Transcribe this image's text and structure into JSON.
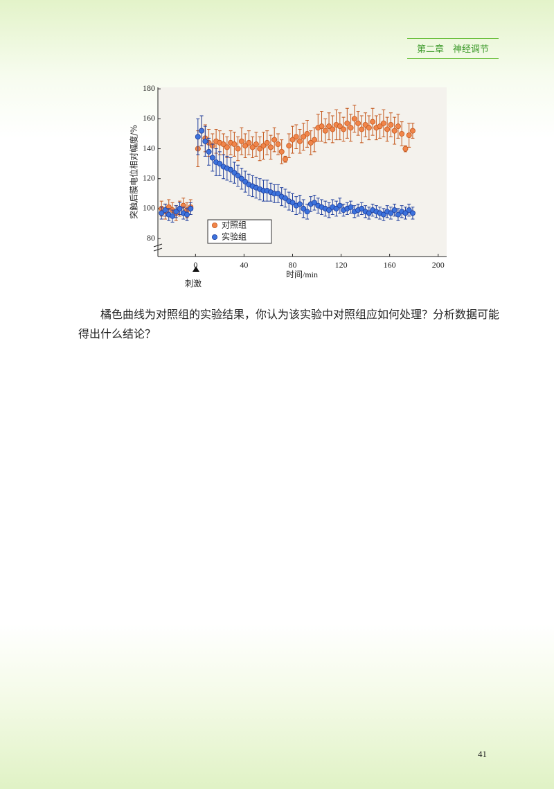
{
  "header": {
    "title": "第二章　神经调节"
  },
  "chart_data": {
    "type": "scatter",
    "y_label": "突触后膜电位相对幅度/%",
    "x_label": "时间/min",
    "annotation": "刺激",
    "x": [
      -28,
      -25,
      -22,
      -19,
      -16,
      -13,
      -10,
      -7,
      -4,
      2,
      5,
      8,
      11,
      14,
      17,
      20,
      23,
      26,
      29,
      32,
      35,
      38,
      41,
      44,
      47,
      50,
      53,
      56,
      59,
      62,
      65,
      68,
      71,
      74,
      77,
      80,
      83,
      86,
      89,
      92,
      95,
      98,
      101,
      104,
      107,
      110,
      113,
      116,
      119,
      122,
      125,
      128,
      131,
      134,
      137,
      140,
      143,
      146,
      149,
      152,
      155,
      158,
      161,
      164,
      167,
      170,
      173,
      176,
      179
    ],
    "series": [
      {
        "name": "对照组",
        "color": "#f0854a",
        "stroke": "#c4571c",
        "values": [
          100,
          98,
          101,
          99,
          97,
          100,
          102,
          99,
          101,
          140,
          152,
          147,
          144,
          142,
          145,
          144,
          143,
          141,
          144,
          143,
          140,
          145,
          142,
          144,
          141,
          143,
          140,
          142,
          144,
          141,
          146,
          143,
          138,
          133,
          142,
          146,
          148,
          145,
          148,
          150,
          144,
          146,
          154,
          155,
          152,
          155,
          153,
          156,
          155,
          153,
          157,
          154,
          160,
          157,
          153,
          156,
          154,
          158,
          154,
          155,
          157,
          153,
          156,
          152,
          155,
          150,
          140,
          149,
          152
        ],
        "errors": [
          5,
          5,
          5,
          5,
          5,
          5,
          5,
          5,
          5,
          12,
          10,
          9,
          9,
          8,
          8,
          8,
          7,
          7,
          8,
          8,
          8,
          9,
          8,
          8,
          7,
          8,
          8,
          9,
          8,
          8,
          8,
          7,
          8,
          2,
          8,
          9,
          8,
          8,
          9,
          9,
          8,
          8,
          9,
          10,
          8,
          9,
          9,
          10,
          9,
          8,
          10,
          9,
          9,
          8,
          9,
          8,
          8,
          9,
          8,
          8,
          9,
          8,
          8,
          9,
          8,
          8,
          2,
          8,
          5
        ]
      },
      {
        "name": "实验组",
        "color": "#3c72dc",
        "stroke": "#1c3c9c",
        "values": [
          97,
          99,
          96,
          95,
          98,
          100,
          97,
          96,
          100,
          148,
          152,
          145,
          138,
          134,
          131,
          130,
          128,
          127,
          126,
          124,
          122,
          120,
          118,
          116,
          115,
          114,
          113,
          112,
          112,
          111,
          110,
          110,
          108,
          107,
          105,
          104,
          102,
          103,
          100,
          98,
          103,
          104,
          102,
          101,
          100,
          99,
          101,
          100,
          102,
          99,
          100,
          101,
          98,
          99,
          100,
          98,
          97,
          99,
          98,
          97,
          96,
          98,
          97,
          99,
          96,
          98,
          97,
          99,
          97
        ],
        "errors": [
          4,
          4,
          4,
          4,
          4,
          4,
          4,
          4,
          4,
          12,
          10,
          10,
          9,
          9,
          9,
          8,
          8,
          8,
          8,
          7,
          7,
          7,
          7,
          7,
          7,
          7,
          7,
          7,
          7,
          6,
          6,
          6,
          6,
          6,
          6,
          6,
          6,
          6,
          6,
          5,
          5,
          5,
          5,
          5,
          5,
          5,
          5,
          5,
          5,
          4,
          4,
          4,
          4,
          4,
          4,
          4,
          4,
          4,
          4,
          4,
          4,
          4,
          4,
          4,
          4,
          4,
          4,
          4,
          4
        ]
      }
    ],
    "xlim": [
      -31,
      207
    ],
    "ylim": [
      68,
      181
    ],
    "xticks": [
      0,
      40,
      80,
      120,
      160,
      200
    ],
    "yticks": [
      80,
      100,
      120,
      140,
      160,
      180
    ],
    "legend": "bottom-left"
  },
  "body": {
    "text": "橘色曲线为对照组的实验结果，你认为该实验中对照组应如何处理？分析数据可能得出什么结论？"
  },
  "page_number": "41"
}
